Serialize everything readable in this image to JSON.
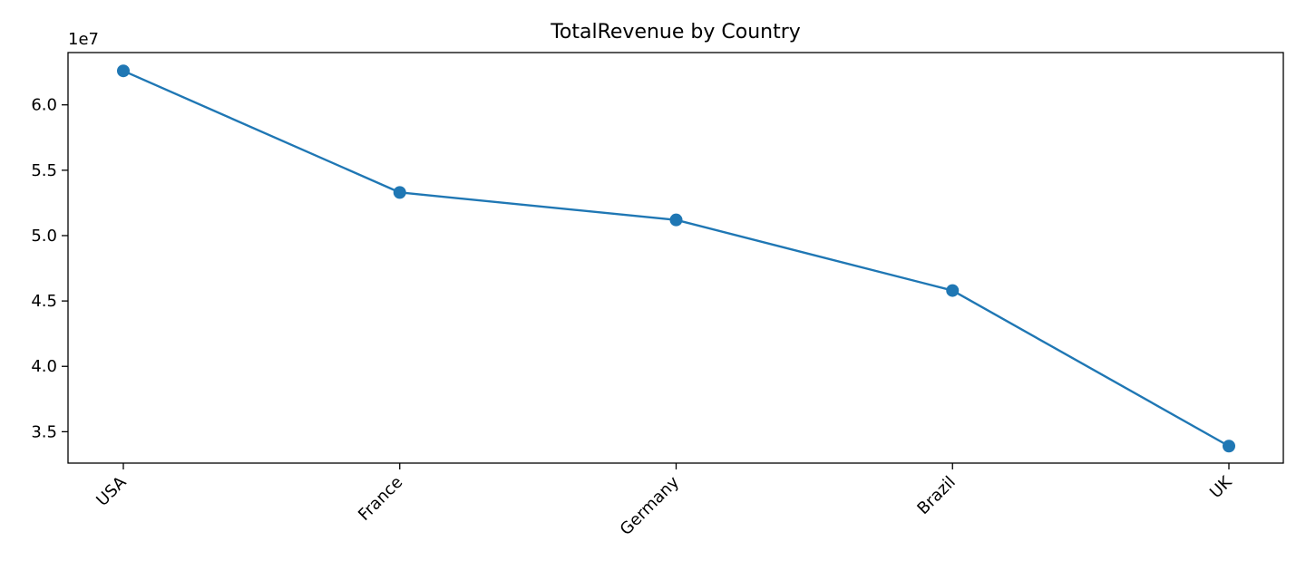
{
  "chart_data": {
    "type": "line",
    "title": "TotalRevenue by Country",
    "xlabel": "",
    "ylabel": "",
    "categories": [
      "USA",
      "France",
      "Germany",
      "Brazil",
      "UK"
    ],
    "series": [
      {
        "values": [
          62600000,
          53300000,
          51200000,
          45800000,
          33900000
        ],
        "color": "#1f77b4",
        "marker": "circle"
      }
    ],
    "ylim": [
      32600000,
      64000000
    ],
    "yticks": [
      35000000,
      40000000,
      45000000,
      50000000,
      55000000,
      60000000
    ],
    "ytick_labels": [
      "3.5",
      "4.0",
      "4.5",
      "5.0",
      "5.5",
      "6.0"
    ],
    "y_offset_label": "1e7",
    "x_tick_rotation": 45,
    "grid": false,
    "legend": "none"
  }
}
